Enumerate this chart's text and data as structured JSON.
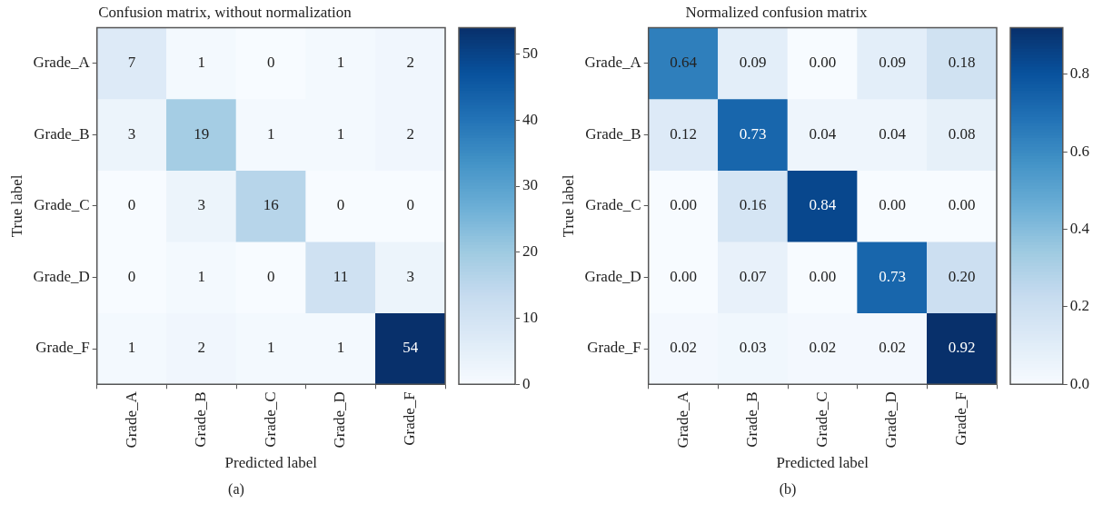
{
  "chart_data": [
    {
      "type": "heatmap",
      "title": "Confusion matrix, without normalization",
      "xlabel": "Predicted label",
      "ylabel": "True label",
      "categories": [
        "Grade_A",
        "Grade_B",
        "Grade_C",
        "Grade_D",
        "Grade_F"
      ],
      "y_categories": [
        "Grade_A",
        "Grade_B",
        "Grade_C",
        "Grade_D",
        "Grade_F"
      ],
      "cells": [
        [
          7,
          1,
          0,
          1,
          2
        ],
        [
          3,
          19,
          1,
          1,
          2
        ],
        [
          0,
          3,
          16,
          0,
          0
        ],
        [
          0,
          1,
          0,
          11,
          3
        ],
        [
          1,
          2,
          1,
          1,
          54
        ]
      ],
      "clim": [
        0,
        54
      ],
      "cticks": [
        0,
        10,
        20,
        30,
        40,
        50
      ],
      "data_labels": true,
      "grid": false,
      "legend": false,
      "annotations": [
        "(a)"
      ]
    },
    {
      "type": "heatmap",
      "title": "Normalized confusion matrix",
      "xlabel": "Predicted label",
      "ylabel": "True label",
      "categories": [
        "Grade_A",
        "Grade_B",
        "Grade_C",
        "Grade_D",
        "Grade_F"
      ],
      "y_categories": [
        "Grade_A",
        "Grade_B",
        "Grade_C",
        "Grade_D",
        "Grade_F"
      ],
      "cells": [
        [
          0.64,
          0.09,
          0,
          0.09,
          0.18
        ],
        [
          0.12,
          0.73,
          0.04,
          0.04,
          0.08
        ],
        [
          0,
          0.16,
          0.84,
          0,
          0
        ],
        [
          0,
          0.07,
          0,
          0.73,
          0.2
        ],
        [
          0.02,
          0.03,
          0.02,
          0.02,
          0.92
        ]
      ],
      "cell_labels": [
        [
          "0.64",
          "0.09",
          "0.00",
          "0.09",
          "0.18"
        ],
        [
          "0.12",
          "0.73",
          "0.04",
          "0.04",
          "0.08"
        ],
        [
          "0.00",
          "0.16",
          "0.84",
          "0.00",
          "0.00"
        ],
        [
          "0.00",
          "0.07",
          "0.00",
          "0.73",
          "0.20"
        ],
        [
          "0.02",
          "0.03",
          "0.02",
          "0.02",
          "0.92"
        ]
      ],
      "clim": [
        0,
        0.92
      ],
      "cticks": [
        {
          "value": 0,
          "label": "0.0"
        },
        0.2,
        0.4,
        0.6,
        0.8
      ],
      "data_labels": true,
      "grid": false,
      "legend": false,
      "annotations": [
        "(b)"
      ]
    }
  ]
}
